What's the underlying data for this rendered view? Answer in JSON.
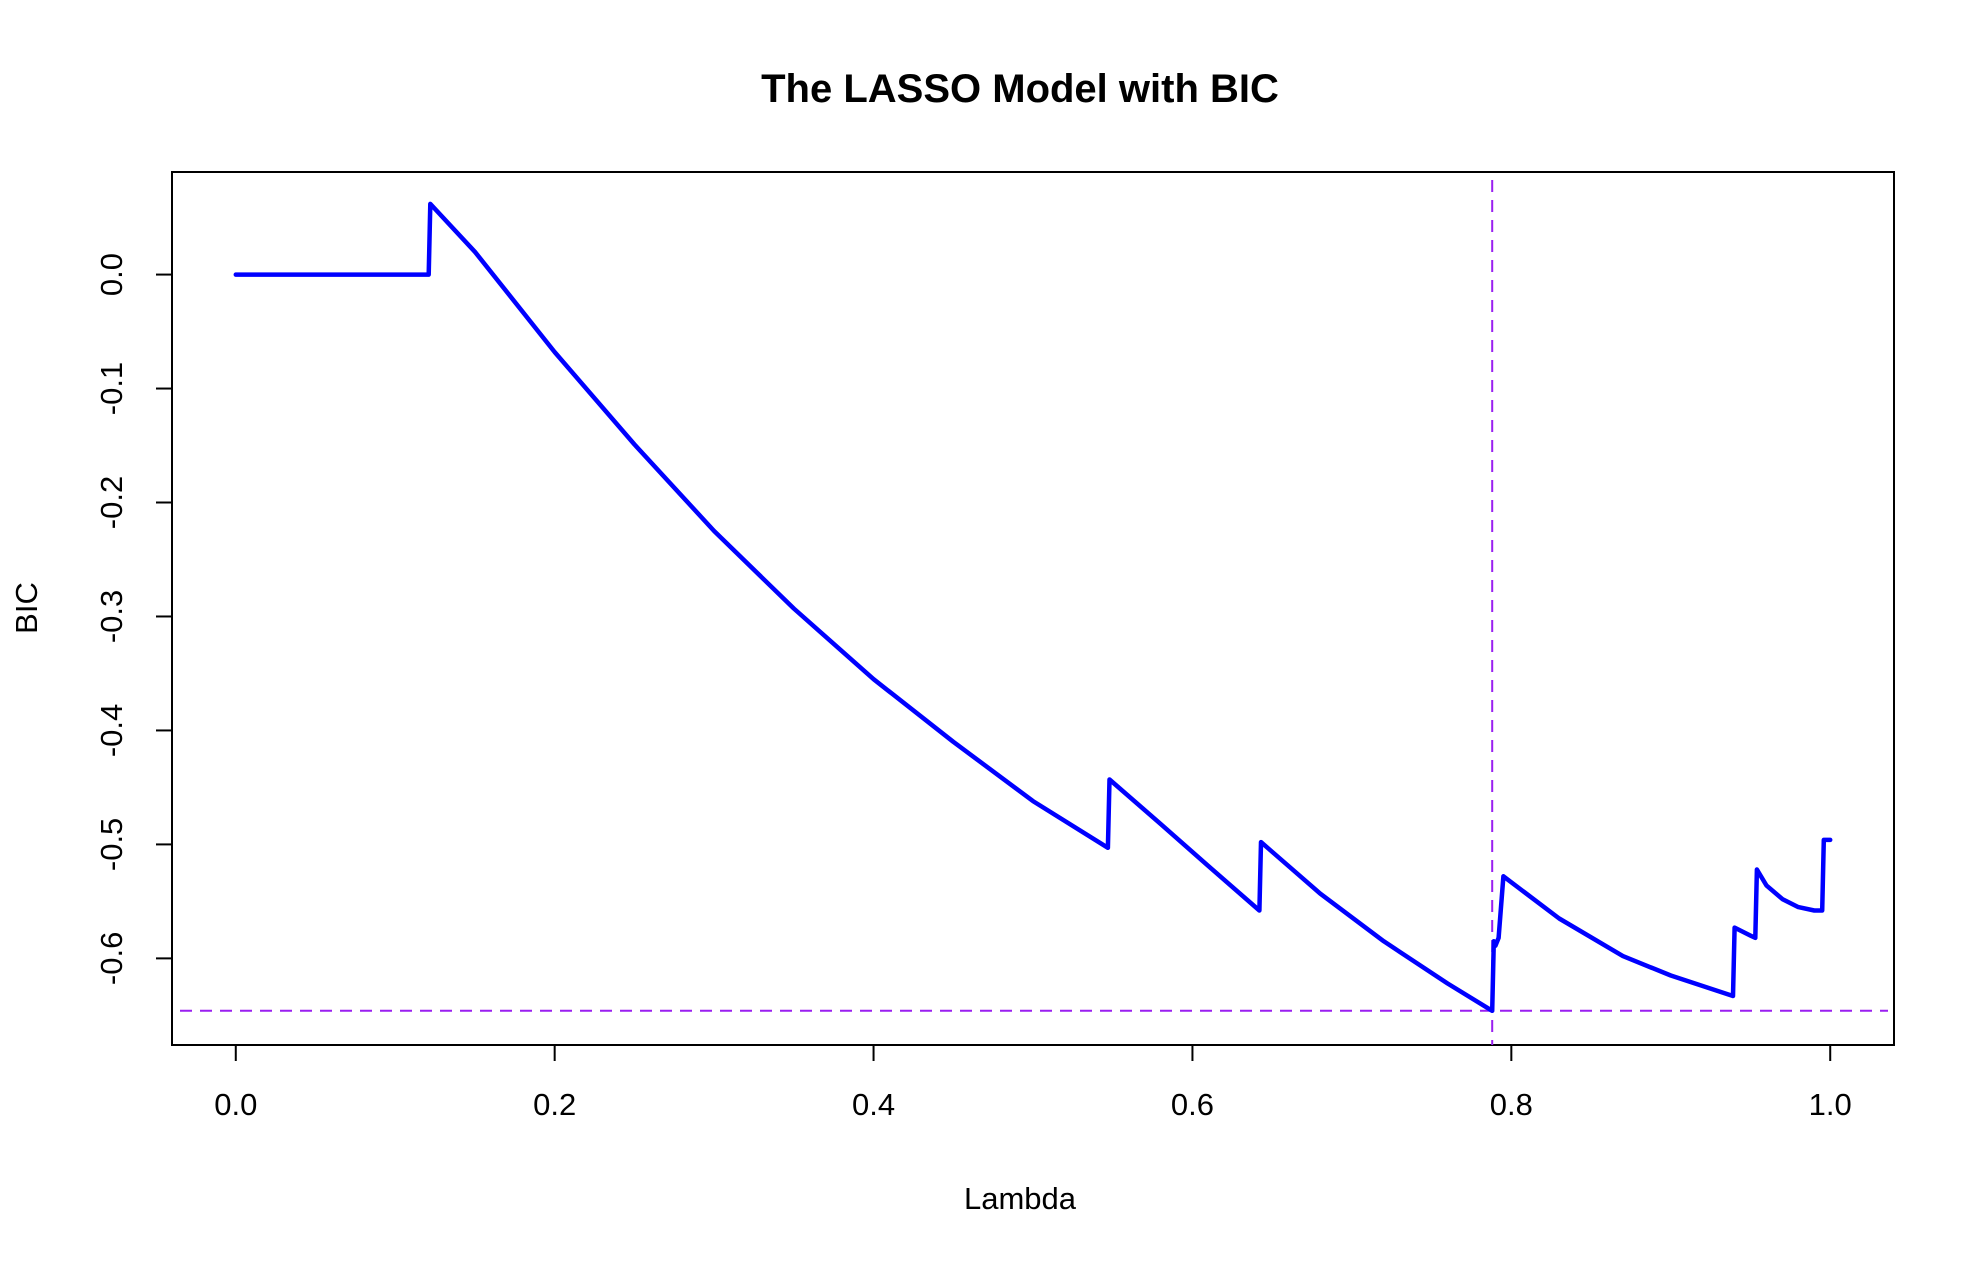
{
  "chart_data": {
    "type": "line",
    "title": "The LASSO Model with BIC",
    "xlabel": "Lambda",
    "ylabel": "BIC",
    "xlim": [
      -0.04,
      1.04
    ],
    "ylim": [
      -0.676,
      0.09
    ],
    "x_ticks": [
      {
        "value": 0.0,
        "label": "0.0"
      },
      {
        "value": 0.2,
        "label": "0.2"
      },
      {
        "value": 0.4,
        "label": "0.4"
      },
      {
        "value": 0.6,
        "label": "0.6"
      },
      {
        "value": 0.8,
        "label": "0.8"
      },
      {
        "value": 1.0,
        "label": "1.0"
      }
    ],
    "y_ticks": [
      {
        "value": 0.0,
        "label": "0.0"
      },
      {
        "value": -0.1,
        "label": "-0.1"
      },
      {
        "value": -0.2,
        "label": "-0.2"
      },
      {
        "value": -0.3,
        "label": "-0.3"
      },
      {
        "value": -0.4,
        "label": "-0.4"
      },
      {
        "value": -0.5,
        "label": "-0.5"
      },
      {
        "value": -0.6,
        "label": "-0.6"
      }
    ],
    "grid": false,
    "series": [
      {
        "color": "#0000ff",
        "x": [
          0.0,
          0.05,
          0.1,
          0.121,
          0.122,
          0.15,
          0.2,
          0.25,
          0.3,
          0.35,
          0.4,
          0.45,
          0.5,
          0.547,
          0.548,
          0.58,
          0.61,
          0.642,
          0.643,
          0.68,
          0.72,
          0.76,
          0.788,
          0.789,
          0.79,
          0.792,
          0.795,
          0.83,
          0.87,
          0.9,
          0.939,
          0.94,
          0.95,
          0.953,
          0.954,
          0.96,
          0.97,
          0.98,
          0.99,
          0.995,
          0.996,
          1.0
        ],
        "y": [
          0.0,
          0.0,
          0.0,
          0.0,
          0.062,
          0.02,
          -0.068,
          -0.149,
          -0.225,
          -0.293,
          -0.355,
          -0.41,
          -0.462,
          -0.503,
          -0.443,
          -0.482,
          -0.519,
          -0.558,
          -0.498,
          -0.543,
          -0.585,
          -0.622,
          -0.646,
          -0.585,
          -0.589,
          -0.582,
          -0.528,
          -0.565,
          -0.598,
          -0.615,
          -0.633,
          -0.573,
          -0.58,
          -0.582,
          -0.522,
          -0.536,
          -0.548,
          -0.555,
          -0.558,
          -0.558,
          -0.496,
          -0.496
        ]
      }
    ],
    "reference_lines": [
      {
        "orientation": "vertical",
        "value": 0.788,
        "color": "#9a1ff0",
        "style": "dashed"
      },
      {
        "orientation": "horizontal",
        "value": -0.646,
        "color": "#9a1ff0",
        "style": "dashed"
      }
    ]
  }
}
